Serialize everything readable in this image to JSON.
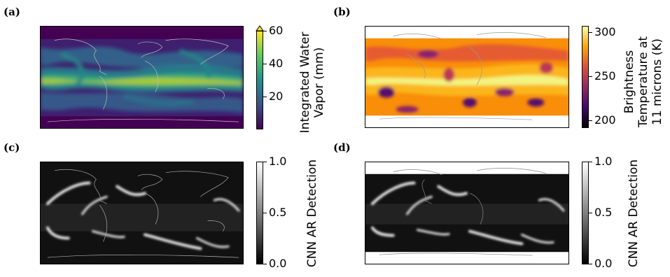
{
  "panels": [
    {
      "label": "(a)",
      "colorbar": {
        "lines": [
          "Integrated Water",
          "Vapor (mm)"
        ],
        "ticks": [
          "60",
          "40",
          "20"
        ],
        "extend_top": true
      }
    },
    {
      "label": "(b)",
      "colorbar": {
        "lines": [
          "Brightness",
          "Temperature at",
          "11 microns (K)"
        ],
        "ticks": [
          "300",
          "250",
          "200"
        ]
      }
    },
    {
      "label": "(c)",
      "colorbar": {
        "lines": [
          "CNN AR Detection"
        ],
        "ticks": [
          "1.0",
          "0.5",
          "0.0"
        ]
      }
    },
    {
      "label": "(d)",
      "colorbar": {
        "lines": [
          "CNN AR Detection"
        ],
        "ticks": [
          "1.0",
          "0.5",
          "0.0"
        ]
      }
    }
  ],
  "colors": {
    "viridis": [
      "#440154",
      "#3b528b",
      "#21918c",
      "#5ec962",
      "#fde725"
    ],
    "inferno": [
      "#000004",
      "#420a68",
      "#932667",
      "#dd513a",
      "#fca50a",
      "#fcffa4"
    ],
    "gray": [
      "#000000",
      "#ffffff"
    ]
  }
}
